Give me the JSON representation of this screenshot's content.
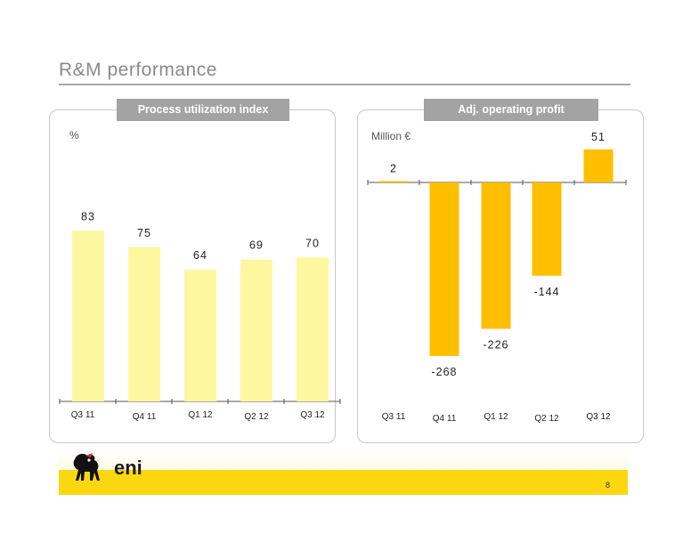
{
  "page": {
    "title": "R&M performance",
    "page_number": "8",
    "brand": "eni"
  },
  "colors": {
    "left_bar": "#fdf7a0",
    "right_bar": "#ffbf00",
    "axis": "#555555",
    "footer": "#fbd70f"
  },
  "chart_data": [
    {
      "type": "bar",
      "title": "Process utilization index",
      "unit": "%",
      "categories": [
        "Q3 11",
        "Q4 11",
        "Q1 12",
        "Q2 12",
        "Q3 12"
      ],
      "values": [
        83,
        75,
        64,
        69,
        70
      ],
      "data_labels": [
        "83",
        "75",
        "64",
        "69",
        "70"
      ],
      "ylim": [
        0,
        100
      ],
      "grid": false
    },
    {
      "type": "bar",
      "title": "Adj. operating profit",
      "unit": "Million €",
      "categories": [
        "Q3 11",
        "Q4 11",
        "Q1 12",
        "Q2 12",
        "Q3 12"
      ],
      "values": [
        2,
        -268,
        -226,
        -144,
        51
      ],
      "data_labels": [
        "2",
        "-268",
        "-226",
        "-144",
        "51"
      ],
      "ylim": [
        -300,
        70
      ],
      "grid": false
    }
  ]
}
